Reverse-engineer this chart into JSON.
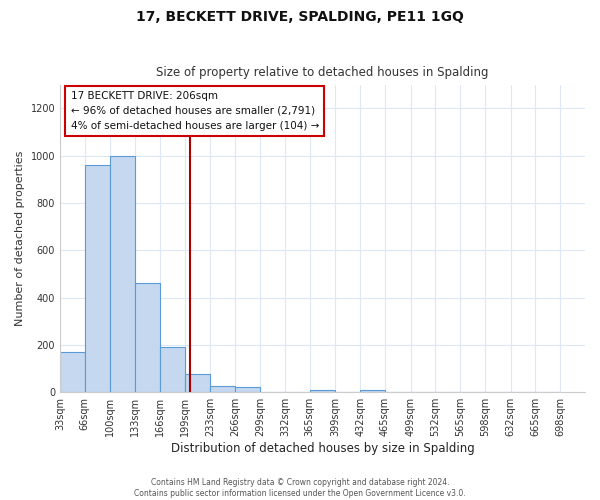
{
  "title": "17, BECKETT DRIVE, SPALDING, PE11 1GQ",
  "subtitle": "Size of property relative to detached houses in Spalding",
  "xlabel": "Distribution of detached houses by size in Spalding",
  "ylabel": "Number of detached properties",
  "bar_edges": [
    33,
    66,
    100,
    133,
    166,
    199,
    233,
    266,
    299,
    332,
    365,
    399,
    432,
    465,
    499,
    532,
    565,
    598,
    632,
    665,
    698
  ],
  "bar_heights": [
    170,
    960,
    1000,
    460,
    190,
    75,
    25,
    20,
    0,
    0,
    10,
    0,
    10,
    0,
    0,
    0,
    0,
    0,
    0,
    0
  ],
  "bar_color": "#c5d8f0",
  "bar_edge_color": "#5b9bd5",
  "ylim": [
    0,
    1300
  ],
  "yticks": [
    0,
    200,
    400,
    600,
    800,
    1000,
    1200
  ],
  "property_size": 206,
  "red_line_color": "#aa0000",
  "annotation_title": "17 BECKETT DRIVE: 206sqm",
  "annotation_line1": "← 96% of detached houses are smaller (2,791)",
  "annotation_line2": "4% of semi-detached houses are larger (104) →",
  "annotation_box_color": "#ffffff",
  "annotation_box_edge": "#cc0000",
  "footer_line1": "Contains HM Land Registry data © Crown copyright and database right 2024.",
  "footer_line2": "Contains public sector information licensed under the Open Government Licence v3.0.",
  "background_color": "#ffffff",
  "grid_color": "#dce8f5"
}
